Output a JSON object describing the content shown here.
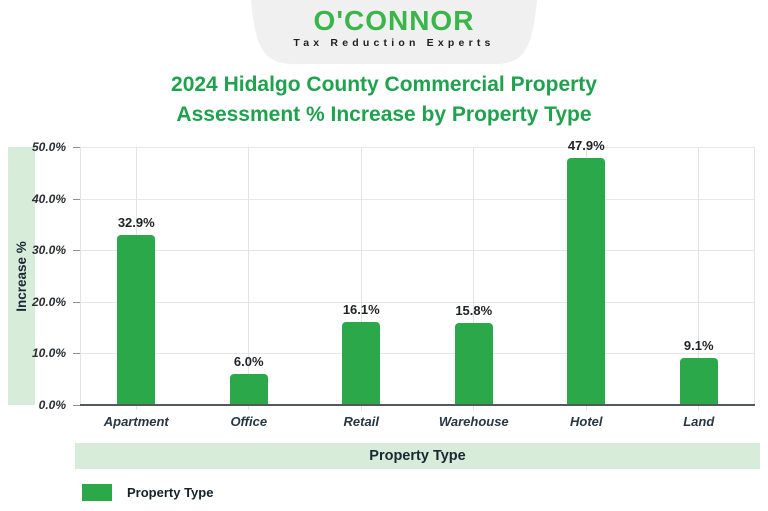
{
  "logo": {
    "name": "O'CONNOR",
    "tagline": "Tax Reduction Experts"
  },
  "title": {
    "line1": "2024 Hidalgo County Commercial Property",
    "line2": "Assessment % Increase by Property Type"
  },
  "chart_data": {
    "type": "bar",
    "title": "2024 Hidalgo County Commercial Property Assessment % Increase by Property Type",
    "categories": [
      "Apartment",
      "Office",
      "Retail",
      "Warehouse",
      "Hotel",
      "Land"
    ],
    "values": [
      32.9,
      6.0,
      16.1,
      15.8,
      47.9,
      9.1
    ],
    "value_labels": [
      "32.9%",
      "6.0%",
      "16.1%",
      "15.8%",
      "47.9%",
      "9.1%"
    ],
    "xlabel": "Property Type",
    "ylabel": "Increase %",
    "ylim": [
      0,
      50
    ],
    "y_tick_values": [
      0,
      10,
      20,
      30,
      40,
      50
    ],
    "y_tick_labels": [
      "0.0%",
      "10.0%",
      "20.0%",
      "30.0%",
      "40.0%",
      "50.0%"
    ],
    "grid": true,
    "legend": {
      "position": "bottom-left",
      "entries": [
        "Property Type"
      ]
    },
    "bar_color": "#2aa84a"
  },
  "colors": {
    "accent_green": "#2aa84a",
    "logo_green": "#3ab54a",
    "title_green": "#1fa24e",
    "band_green": "#d8ecda",
    "badge_gray": "#f0f0f0"
  }
}
